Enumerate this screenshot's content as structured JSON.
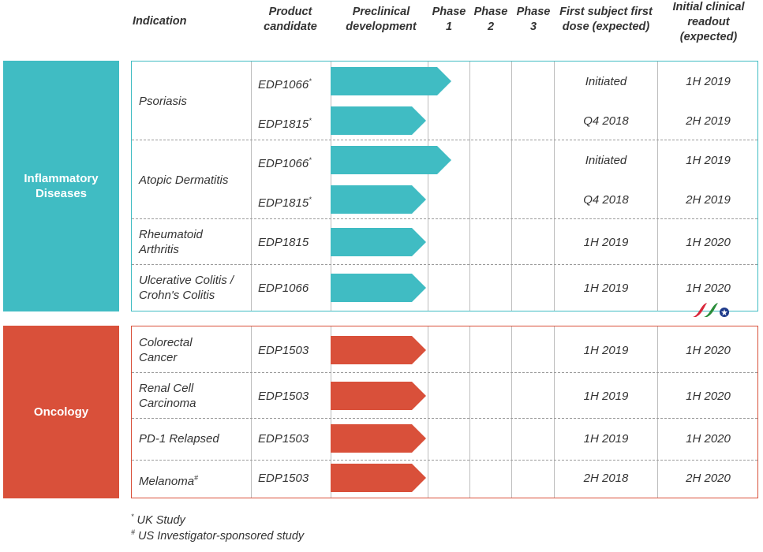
{
  "headers": {
    "indication": "Indication",
    "product_candidate": [
      "Product",
      "candidate"
    ],
    "preclinical": [
      "Preclinical",
      "development"
    ],
    "phase1": [
      "Phase",
      "1"
    ],
    "phase2": [
      "Phase",
      "2"
    ],
    "phase3": [
      "Phase",
      "3"
    ],
    "first_dose": [
      "First subject first",
      "dose (expected)"
    ],
    "readout": [
      "Initial clinical",
      "readout",
      "(expected)"
    ]
  },
  "colors": {
    "teal": "#40bcc3",
    "orange": "#d9503a"
  },
  "inflammatory": {
    "label": [
      "Inflammatory",
      "Diseases"
    ],
    "rows": [
      {
        "indication": "Psoriasis",
        "candidate": "EDP1066",
        "mark": "*",
        "first_dose": "Initiated",
        "readout": "1H 2019",
        "progress": "phase1"
      },
      {
        "indication": "",
        "candidate": "EDP1815",
        "mark": "*",
        "first_dose": "Q4 2018",
        "readout": "2H 2019",
        "progress": "preclinical"
      },
      {
        "indication": "Atopic Dermatitis",
        "candidate": "EDP1066",
        "mark": "*",
        "first_dose": "Initiated",
        "readout": "1H 2019",
        "progress": "phase1"
      },
      {
        "indication": "",
        "candidate": "EDP1815",
        "mark": "*",
        "first_dose": "Q4 2018",
        "readout": "2H 2019",
        "progress": "preclinical"
      },
      {
        "indication": [
          "Rheumatoid",
          "Arthritis"
        ],
        "candidate": "EDP1815",
        "mark": "",
        "first_dose": "1H 2019",
        "readout": "1H 2020",
        "progress": "preclinical"
      },
      {
        "indication": [
          "Ulcerative Colitis /",
          "Crohn's Colitis"
        ],
        "candidate": "EDP1066",
        "mark": "",
        "first_dose": "1H 2019",
        "readout": "1H 2020",
        "progress": "preclinical"
      }
    ]
  },
  "oncology": {
    "label": "Oncology",
    "rows": [
      {
        "indication": [
          "Colorectal",
          "Cancer"
        ],
        "candidate": "EDP1503",
        "mark": "",
        "first_dose": "1H 2019",
        "readout": "1H 2020",
        "progress": "preclinical"
      },
      {
        "indication": [
          "Renal Cell",
          "Carcinoma"
        ],
        "candidate": "EDP1503",
        "mark": "",
        "first_dose": "1H 2019",
        "readout": "1H 2020",
        "progress": "preclinical"
      },
      {
        "indication": "PD-1 Relapsed",
        "candidate": "EDP1503",
        "mark": "",
        "first_dose": "1H 2019",
        "readout": "1H 2020",
        "progress": "preclinical"
      },
      {
        "indication": "Melanoma",
        "indication_mark": "#",
        "candidate": "EDP1503",
        "mark": "",
        "first_dose": "2H 2018",
        "readout": "2H 2020",
        "progress": "preclinical"
      }
    ]
  },
  "footnotes": {
    "star_mark": "*",
    "star_text": "UK Study",
    "hash_mark": "#",
    "hash_text": "US Investigator-sponsored study"
  }
}
